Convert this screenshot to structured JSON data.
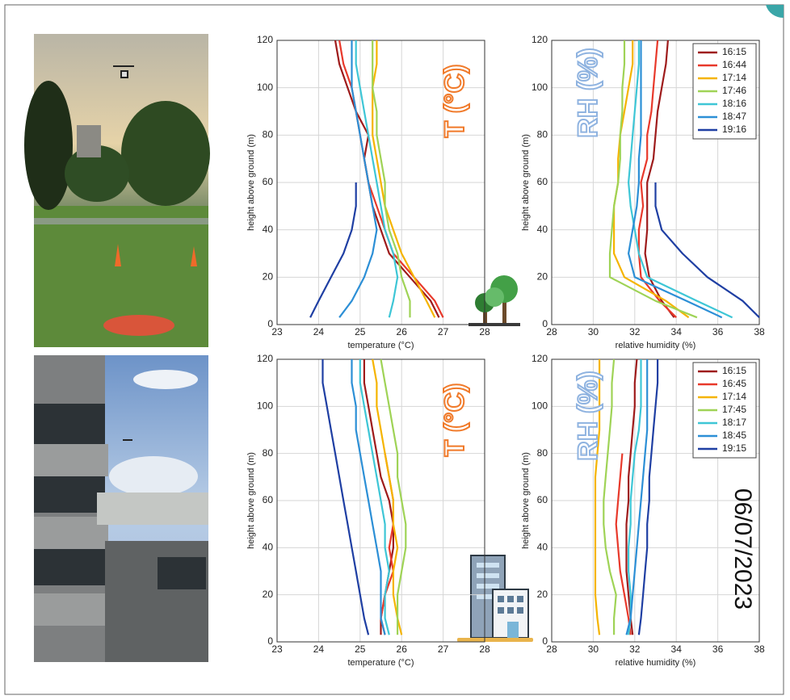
{
  "chart_data": [
    {
      "type": "line",
      "xlabel": "temperature (°C)",
      "ylabel": "height above ground (m)",
      "annotation": "T (°C)",
      "xlim": [
        23,
        28
      ],
      "xticks": [
        23,
        24,
        25,
        26,
        27,
        28
      ],
      "ylim": [
        0,
        120
      ],
      "yticks": [
        0,
        20,
        40,
        60,
        80,
        100,
        120
      ],
      "grid": true,
      "y": [
        3,
        10,
        20,
        30,
        40,
        50,
        60,
        70,
        80,
        90,
        100,
        110,
        120
      ],
      "series": [
        {
          "color": "#9e1b1b",
          "values": [
            26.9,
            26.7,
            26.2,
            25.7,
            25.5,
            25.3,
            25.2,
            25.1,
            25.2,
            24.9,
            24.7,
            24.5,
            24.4
          ]
        },
        {
          "color": "#e8392b",
          "values": [
            27.0,
            26.8,
            26.3,
            25.8,
            25.6,
            25.4,
            25.2,
            25.1,
            25.0,
            24.9,
            24.8,
            24.6,
            24.5
          ]
        },
        {
          "color": "#f5b400",
          "values": [
            26.8,
            26.6,
            26.3,
            26.0,
            25.8,
            25.6,
            25.5,
            25.4,
            25.3,
            25.3,
            25.3,
            25.4,
            25.4
          ]
        },
        {
          "color": "#9fd356",
          "values": [
            26.2,
            26.2,
            26.0,
            25.9,
            25.7,
            25.6,
            25.6,
            25.5,
            25.4,
            25.4,
            25.3,
            25.3,
            25.3
          ]
        },
        {
          "color": "#3ec6d6",
          "values": [
            25.7,
            25.8,
            25.9,
            25.8,
            25.6,
            25.5,
            25.4,
            25.3,
            25.2,
            25.1,
            25.0,
            24.9,
            24.9
          ]
        },
        {
          "color": "#2c8fd6",
          "values": [
            24.5,
            24.8,
            25.1,
            25.3,
            25.4,
            25.3,
            25.2,
            25.1,
            25.0,
            24.9,
            24.8,
            24.8,
            24.8
          ]
        },
        {
          "color": "#1f3fa3",
          "values": [
            23.8,
            24.0,
            24.3,
            24.6,
            24.8,
            24.9,
            24.9,
            null,
            null,
            null,
            null,
            null,
            null
          ]
        }
      ]
    },
    {
      "type": "line",
      "xlabel": "relative humidity (%)",
      "ylabel": "height above ground (m)",
      "annotation": "RH (%)",
      "xlim": [
        28,
        38
      ],
      "xticks": [
        28,
        30,
        32,
        34,
        36,
        38
      ],
      "ylim": [
        0,
        120
      ],
      "yticks": [
        0,
        20,
        40,
        60,
        80,
        100,
        120
      ],
      "grid": true,
      "legend": "upper right",
      "y": [
        3,
        10,
        20,
        30,
        40,
        50,
        60,
        70,
        80,
        90,
        100,
        110,
        120
      ],
      "series": [
        {
          "name": "16:15",
          "color": "#9e1b1b",
          "values": [
            33.9,
            33.3,
            32.7,
            32.5,
            32.6,
            32.6,
            32.6,
            32.9,
            33.0,
            33.1,
            33.3,
            33.5,
            33.6
          ]
        },
        {
          "name": "16:44",
          "color": "#e8392b",
          "values": [
            34.0,
            33.2,
            32.3,
            32.2,
            32.2,
            32.4,
            32.3,
            32.6,
            32.6,
            32.8,
            32.9,
            33.0,
            33.1
          ]
        },
        {
          "name": "17:14",
          "color": "#f5b400",
          "values": [
            34.6,
            33.5,
            31.5,
            31.0,
            31.0,
            31.0,
            31.2,
            31.2,
            31.3,
            31.5,
            31.7,
            31.9,
            31.9
          ]
        },
        {
          "name": "17:46",
          "color": "#9fd356",
          "values": [
            35.0,
            33.0,
            30.8,
            30.8,
            30.9,
            31.0,
            31.2,
            31.3,
            31.3,
            31.4,
            31.4,
            31.5,
            31.5
          ]
        },
        {
          "name": "18:16",
          "color": "#3ec6d6",
          "values": [
            36.7,
            35.0,
            32.6,
            32.2,
            32.0,
            31.8,
            31.7,
            31.8,
            31.9,
            32.0,
            32.1,
            32.2,
            32.2
          ]
        },
        {
          "name": "18:47",
          "color": "#2c8fd6",
          "values": [
            36.2,
            34.5,
            32.0,
            31.7,
            31.9,
            32.1,
            32.2,
            32.2,
            32.3,
            32.3,
            32.3,
            32.3,
            32.3
          ]
        },
        {
          "name": "19:16",
          "color": "#1f3fa3",
          "values": [
            38.0,
            37.2,
            35.5,
            34.3,
            33.3,
            33.0,
            33.0,
            null,
            null,
            null,
            null,
            null,
            null
          ]
        }
      ]
    },
    {
      "type": "line",
      "xlabel": "temperature (°C)",
      "ylabel": "height above ground (m)",
      "annotation": "T (°C)",
      "xlim": [
        23,
        28
      ],
      "xticks": [
        23,
        24,
        25,
        26,
        27,
        28
      ],
      "ylim": [
        0,
        120
      ],
      "yticks": [
        0,
        20,
        40,
        60,
        80,
        100,
        120
      ],
      "grid": true,
      "y": [
        3,
        10,
        20,
        30,
        40,
        50,
        60,
        70,
        80,
        90,
        100,
        110,
        120
      ],
      "series": [
        {
          "color": "#9e1b1b",
          "values": [
            25.5,
            25.5,
            25.6,
            25.7,
            25.8,
            25.8,
            25.7,
            25.5,
            25.4,
            25.3,
            25.2,
            25.1,
            25.1
          ]
        },
        {
          "color": "#e8392b",
          "values": [
            25.6,
            25.5,
            25.6,
            25.8,
            25.7,
            25.8,
            25.8,
            25.7,
            25.6,
            null,
            null,
            null,
            null
          ]
        },
        {
          "color": "#f5b400",
          "values": [
            26.0,
            25.9,
            25.8,
            25.8,
            25.9,
            25.8,
            25.8,
            25.7,
            25.6,
            25.5,
            25.4,
            25.4,
            25.3
          ]
        },
        {
          "color": "#9fd356",
          "values": [
            25.9,
            25.9,
            25.9,
            26.0,
            26.1,
            26.1,
            26.0,
            25.9,
            25.9,
            25.8,
            25.7,
            25.6,
            25.5
          ]
        },
        {
          "color": "#3ec6d6",
          "values": [
            25.7,
            25.6,
            25.6,
            25.7,
            25.6,
            25.6,
            25.5,
            25.4,
            25.3,
            25.2,
            25.1,
            25.0,
            25.0
          ]
        },
        {
          "color": "#2c8fd6",
          "values": [
            25.6,
            25.5,
            25.5,
            25.5,
            25.4,
            25.3,
            25.2,
            25.1,
            25.0,
            24.9,
            24.9,
            24.8,
            24.8
          ]
        },
        {
          "color": "#1f3fa3",
          "values": [
            25.2,
            25.1,
            25.0,
            24.9,
            24.8,
            24.7,
            24.6,
            24.5,
            24.4,
            24.3,
            24.2,
            24.1,
            24.1
          ]
        }
      ]
    },
    {
      "type": "line",
      "xlabel": "relative humidity (%)",
      "ylabel": "height above ground (m)",
      "annotation": "RH (%)",
      "date_annotation": "06/07/2023",
      "xlim": [
        28,
        38
      ],
      "xticks": [
        28,
        30,
        32,
        34,
        36,
        38
      ],
      "ylim": [
        0,
        120
      ],
      "yticks": [
        0,
        20,
        40,
        60,
        80,
        100,
        120
      ],
      "grid": true,
      "legend": "upper right",
      "y": [
        3,
        10,
        20,
        30,
        40,
        50,
        60,
        70,
        80,
        90,
        100,
        110,
        120
      ],
      "series": [
        {
          "name": "16:15",
          "color": "#9e1b1b",
          "values": [
            31.9,
            31.8,
            31.7,
            31.6,
            31.6,
            31.6,
            31.7,
            31.7,
            31.8,
            31.9,
            32.0,
            32.0,
            32.1
          ]
        },
        {
          "name": "16:45",
          "color": "#e8392b",
          "values": [
            31.8,
            31.7,
            31.5,
            31.3,
            31.2,
            31.1,
            31.2,
            31.3,
            31.4,
            null,
            null,
            null,
            null
          ]
        },
        {
          "name": "17:14",
          "color": "#f5b400",
          "values": [
            30.3,
            30.2,
            30.1,
            30.1,
            30.1,
            30.1,
            30.1,
            30.1,
            30.2,
            30.3,
            30.3,
            30.3,
            30.3
          ]
        },
        {
          "name": "17:45",
          "color": "#9fd356",
          "values": [
            31.0,
            31.0,
            31.1,
            30.8,
            30.6,
            30.5,
            30.5,
            30.6,
            30.7,
            30.8,
            30.9,
            30.9,
            31.0
          ]
        },
        {
          "name": "18:17",
          "color": "#3ec6d6",
          "values": [
            31.7,
            31.8,
            31.8,
            31.7,
            31.7,
            31.8,
            31.8,
            31.9,
            32.0,
            32.2,
            32.3,
            32.3,
            32.3
          ]
        },
        {
          "name": "18:45",
          "color": "#2c8fd6",
          "values": [
            31.6,
            31.8,
            31.9,
            32.0,
            32.1,
            32.2,
            32.3,
            32.4,
            32.5,
            32.6,
            32.6,
            32.6,
            32.6
          ]
        },
        {
          "name": "19:15",
          "color": "#1f3fa3",
          "values": [
            32.2,
            32.3,
            32.4,
            32.5,
            32.6,
            32.6,
            32.7,
            32.7,
            32.8,
            32.9,
            33.0,
            33.1,
            33.1
          ]
        }
      ]
    }
  ]
}
